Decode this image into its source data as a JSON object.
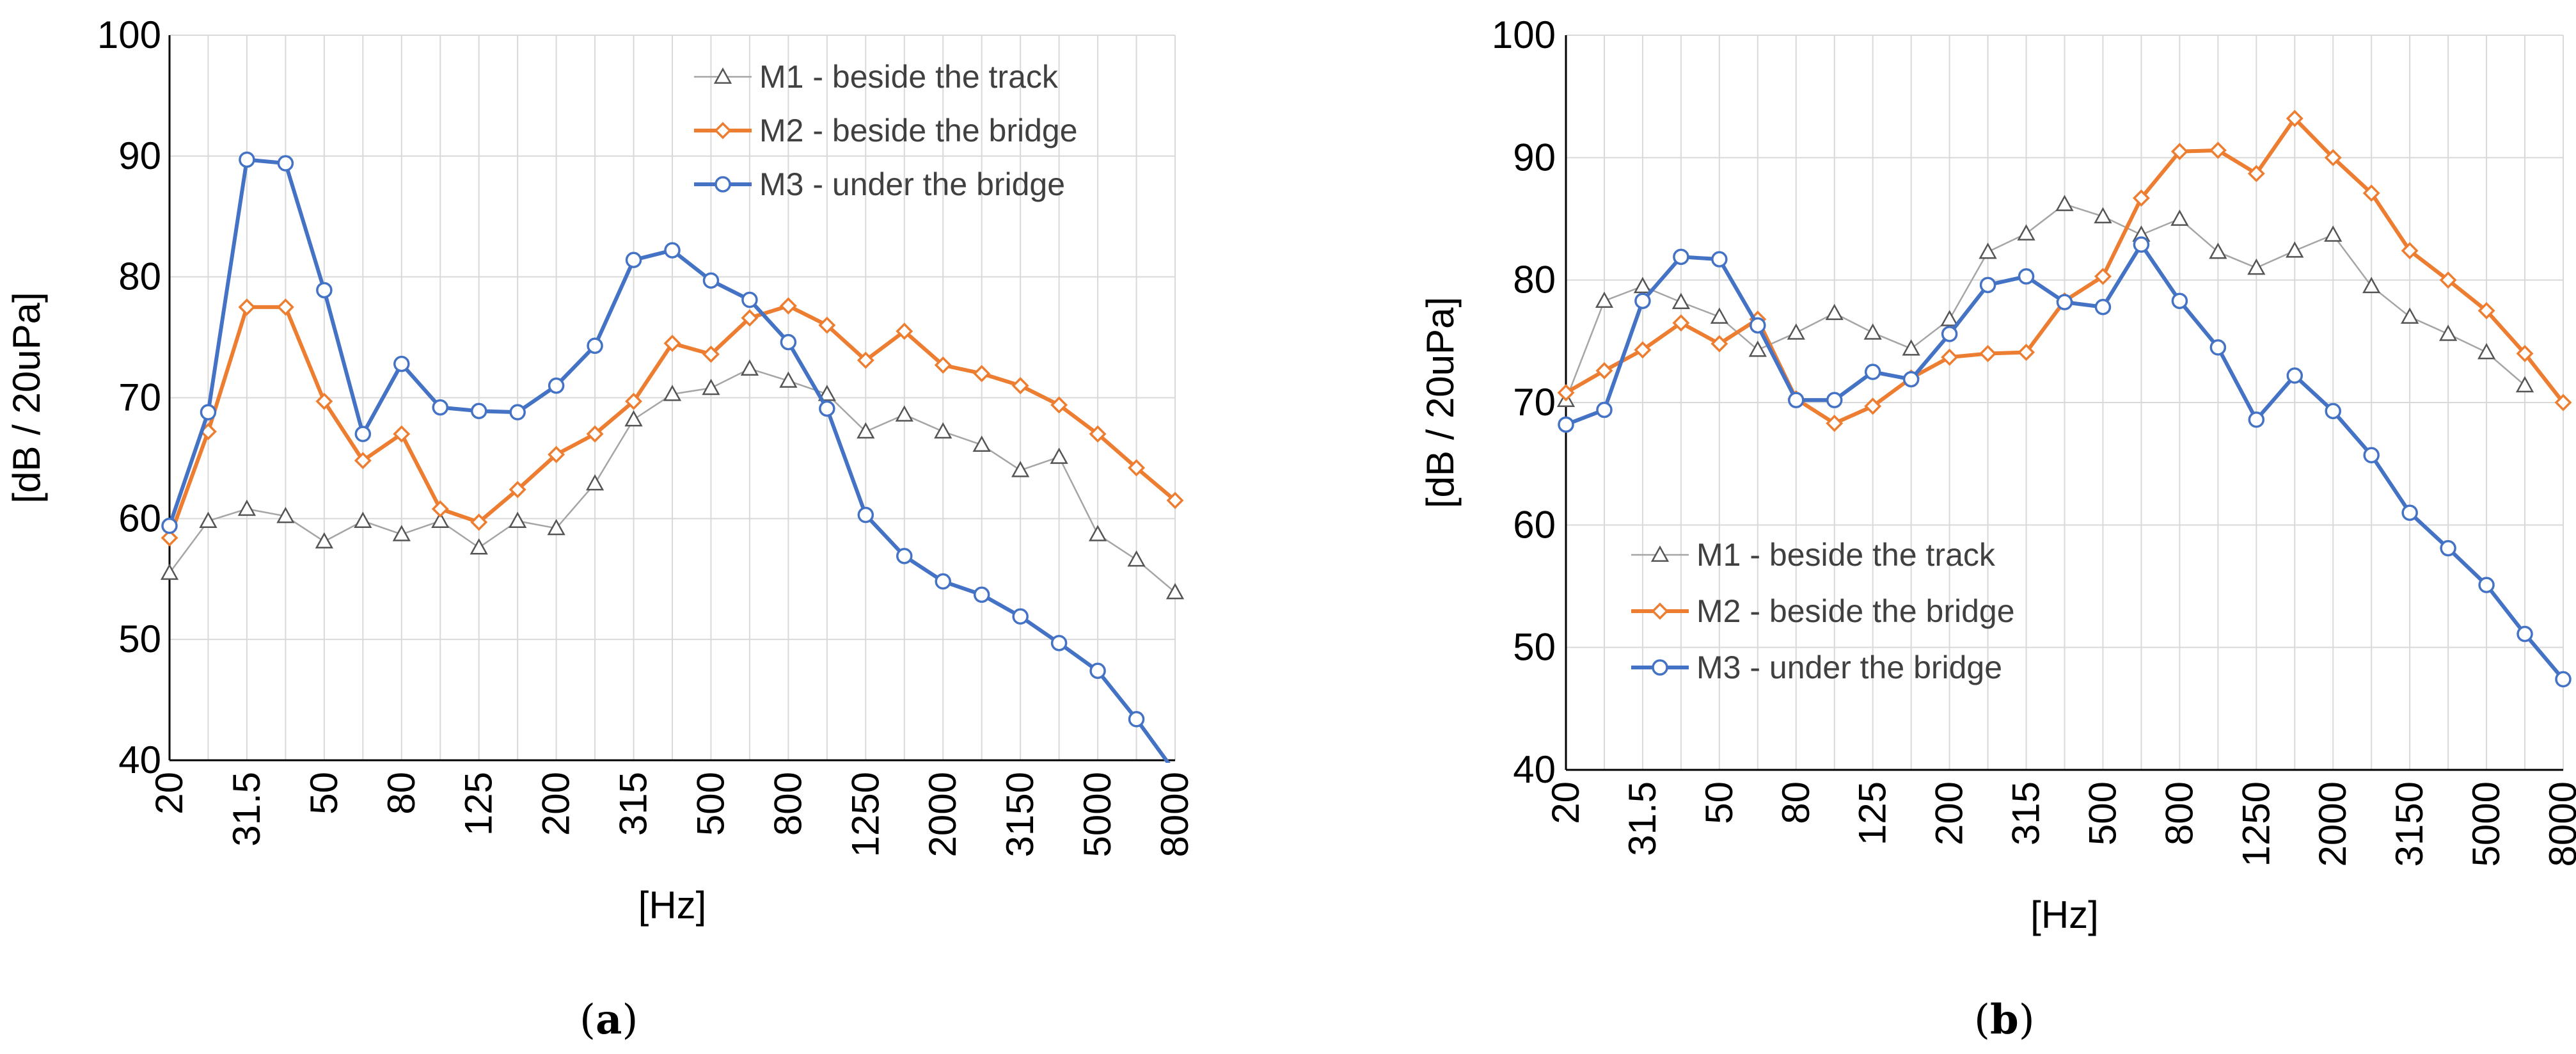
{
  "chart_data": [
    {
      "panel_label": "a",
      "type": "line",
      "xlabel": "[Hz]",
      "ylabel": "[dB / 20uPa]",
      "ylim": [
        40,
        100
      ],
      "yticks": [
        40,
        50,
        60,
        70,
        80,
        90,
        100
      ],
      "legend_position": "top-right",
      "grid": true,
      "categories": [
        "20",
        "25",
        "31.5",
        "40",
        "50",
        "63",
        "80",
        "100",
        "125",
        "160",
        "200",
        "250",
        "315",
        "400",
        "500",
        "630",
        "800",
        "1000",
        "1250",
        "1600",
        "2000",
        "2500",
        "3150",
        "4000",
        "5000",
        "6300",
        "8000"
      ],
      "tick_labels": [
        "20",
        "31.5",
        "50",
        "80",
        "125",
        "200",
        "315",
        "500",
        "800",
        "1250",
        "2000",
        "3150",
        "5000",
        "8000"
      ],
      "series": [
        {
          "name": "M1 - beside the track",
          "color": "#a5a5a5",
          "marker": "triangle",
          "values": [
            55.5,
            59.8,
            60.8,
            60.2,
            58.1,
            59.8,
            58.7,
            59.8,
            57.6,
            59.8,
            59.2,
            62.9,
            68.2,
            70.3,
            70.8,
            72.4,
            71.4,
            70.3,
            67.2,
            68.6,
            67.2,
            66.1,
            64.0,
            65.1,
            58.7,
            56.6,
            53.9
          ]
        },
        {
          "name": "M2 - beside the bridge",
          "color": "#ed7d31",
          "marker": "diamond",
          "values": [
            58.4,
            67.2,
            77.5,
            77.5,
            69.7,
            64.8,
            67.0,
            60.8,
            59.7,
            62.4,
            65.3,
            67.0,
            69.7,
            74.5,
            73.6,
            76.6,
            77.6,
            76.0,
            73.1,
            75.5,
            72.7,
            72.0,
            71.0,
            69.4,
            67.0,
            64.2,
            61.5
          ]
        },
        {
          "name": "M3 - under the bridge",
          "color": "#4472c4",
          "marker": "circle",
          "values": [
            59.4,
            68.8,
            89.7,
            89.4,
            78.9,
            67.0,
            72.8,
            69.2,
            68.9,
            68.8,
            71.0,
            74.3,
            81.4,
            82.2,
            79.7,
            78.1,
            74.6,
            69.1,
            60.3,
            56.9,
            54.8,
            53.7,
            51.9,
            49.7,
            47.4,
            43.4,
            39.0
          ]
        }
      ]
    },
    {
      "panel_label": "b",
      "type": "line",
      "xlabel": "[Hz]",
      "ylabel": "[dB / 20uPa]",
      "ylim": [
        40,
        100
      ],
      "yticks": [
        40,
        50,
        60,
        70,
        80,
        90,
        100
      ],
      "legend_position": "bottom-left",
      "grid": true,
      "categories": [
        "20",
        "25",
        "31.5",
        "40",
        "50",
        "63",
        "80",
        "100",
        "125",
        "160",
        "200",
        "250",
        "315",
        "400",
        "500",
        "630",
        "800",
        "1000",
        "1250",
        "1600",
        "2000",
        "2500",
        "3150",
        "4000",
        "5000",
        "6300",
        "8000"
      ],
      "tick_labels": [
        "20",
        "31.5",
        "50",
        "80",
        "125",
        "200",
        "315",
        "500",
        "800",
        "1250",
        "2000",
        "3150",
        "5000",
        "8000"
      ],
      "series": [
        {
          "name": "M1 - beside the track",
          "color": "#a5a5a5",
          "marker": "triangle",
          "values": [
            70.2,
            78.3,
            79.5,
            78.2,
            77.0,
            74.3,
            75.7,
            77.3,
            75.7,
            74.4,
            76.8,
            82.3,
            83.8,
            86.2,
            85.2,
            83.7,
            85.0,
            82.3,
            81.0,
            82.4,
            83.7,
            79.5,
            77.0,
            75.6,
            74.1,
            71.4,
            null
          ]
        },
        {
          "name": "M2 - beside the bridge",
          "color": "#ed7d31",
          "marker": "diamond",
          "values": [
            70.8,
            72.6,
            74.3,
            76.5,
            74.8,
            76.8,
            70.3,
            68.3,
            69.7,
            72.0,
            73.7,
            74.0,
            74.1,
            78.3,
            80.3,
            86.7,
            90.5,
            90.6,
            88.7,
            93.2,
            90.0,
            87.1,
            82.4,
            80.0,
            77.5,
            74.0,
            70.0
          ]
        },
        {
          "name": "M3 - under the bridge",
          "color": "#4472c4",
          "marker": "circle",
          "values": [
            68.2,
            69.4,
            78.3,
            81.9,
            81.7,
            76.3,
            70.2,
            70.2,
            72.5,
            71.9,
            75.6,
            79.6,
            80.3,
            78.2,
            77.8,
            82.9,
            78.3,
            74.5,
            68.6,
            72.2,
            69.3,
            65.7,
            61.0,
            58.1,
            55.1,
            51.1,
            47.4
          ]
        }
      ]
    }
  ]
}
